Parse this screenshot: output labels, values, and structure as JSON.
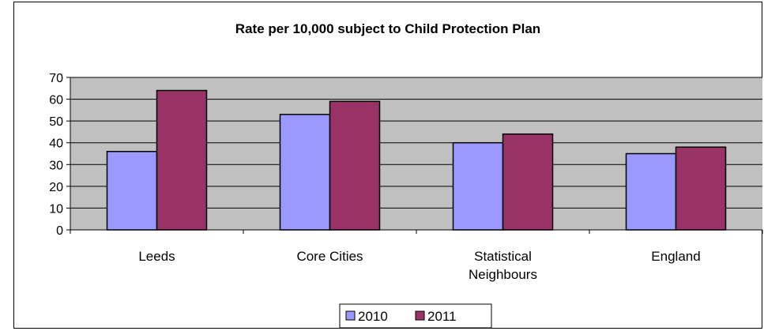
{
  "chart_data": {
    "type": "bar",
    "title": "Rate per 10,000 subject to Child Protection Plan",
    "xlabel": "",
    "ylabel": "",
    "categories": [
      "Leeds",
      "Core Cities",
      "Statistical Neighbours",
      "England"
    ],
    "category_lines": [
      [
        "Leeds"
      ],
      [
        "Core Cities"
      ],
      [
        "Statistical",
        "Neighbours"
      ],
      [
        "England"
      ]
    ],
    "series": [
      {
        "name": "2010",
        "values": [
          36,
          53,
          40,
          35
        ],
        "color": "#9999ff"
      },
      {
        "name": "2011",
        "values": [
          64,
          59,
          44,
          38
        ],
        "color": "#993366"
      }
    ],
    "ylim": [
      0,
      70
    ],
    "yticks": [
      0,
      10,
      20,
      30,
      40,
      50,
      60,
      70
    ],
    "grid": true,
    "plot_background": "#c0c0c0",
    "legend_position": "bottom"
  }
}
